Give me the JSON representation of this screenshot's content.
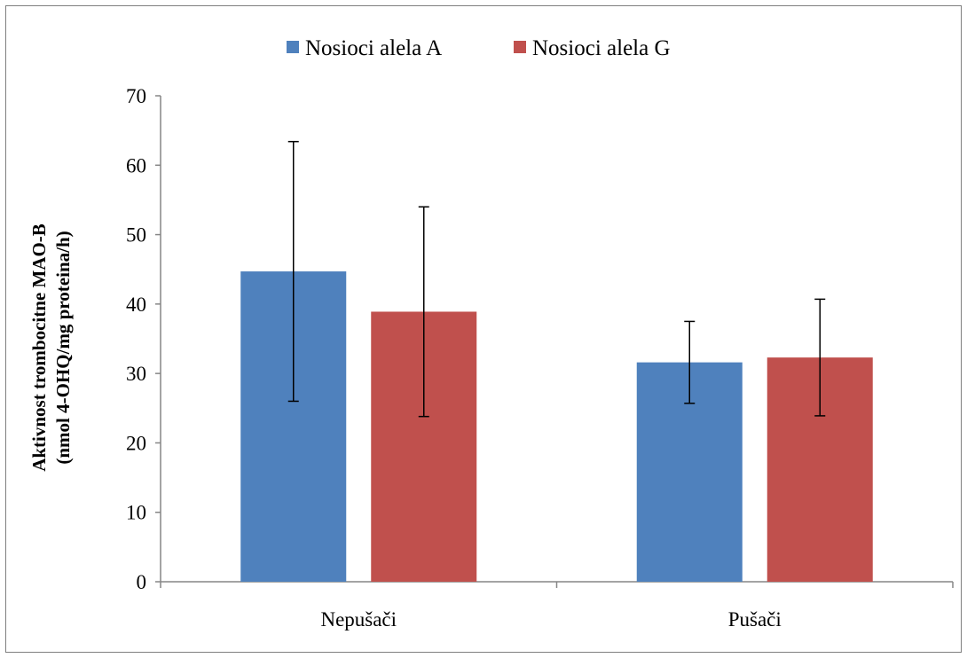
{
  "chart_data": {
    "type": "bar",
    "title": "",
    "ylabel_lines": [
      "Aktivnost trombocitne MAO-B",
      "(nmol 4-OHQ/mg proteina/h)"
    ],
    "xlabel": "",
    "categories": [
      "Nepušači",
      "Pušači"
    ],
    "ylim": [
      0,
      70
    ],
    "yticks": [
      0,
      10,
      20,
      30,
      40,
      50,
      60,
      70
    ],
    "ytick_labels": [
      "0",
      "10",
      "20",
      "30",
      "40",
      "50",
      "60",
      "70"
    ],
    "grid": false,
    "legend_position": "top",
    "series": [
      {
        "name": "Nosioci alela A",
        "color": "#4f81bd",
        "values": [
          44.7,
          31.6
        ],
        "errors": [
          18.7,
          5.9
        ]
      },
      {
        "name": "Nosioci alela G",
        "color": "#c0504d",
        "values": [
          38.9,
          32.3
        ],
        "errors": [
          15.1,
          8.4
        ]
      }
    ]
  }
}
